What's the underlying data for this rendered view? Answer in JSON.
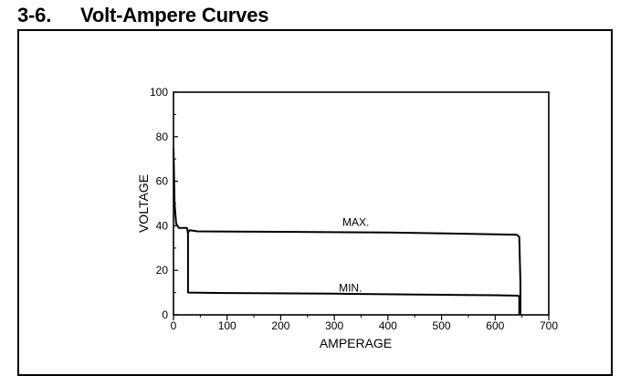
{
  "section": {
    "number": "3-6.",
    "title": "Volt-Ampere Curves"
  },
  "chart_data": {
    "type": "line",
    "title": "",
    "xlabel": "AMPERAGE",
    "ylabel": "VOLTAGE",
    "xlim": [
      0,
      700
    ],
    "ylim": [
      0,
      100
    ],
    "xticks": [
      0,
      100,
      200,
      300,
      400,
      500,
      600,
      700
    ],
    "yticks": [
      0,
      20,
      40,
      60,
      80,
      100
    ],
    "grid": false,
    "legend": "none",
    "line_color": "#000000",
    "series": [
      {
        "name": "MAX.",
        "x": [
          0,
          2,
          5,
          10,
          25,
          27,
          30,
          45,
          200,
          400,
          600,
          640,
          645,
          647,
          647
        ],
        "y": [
          75,
          50,
          41,
          39,
          39,
          37,
          38,
          37.5,
          37.3,
          37,
          36.2,
          36,
          35,
          15,
          0
        ]
      },
      {
        "name": "MIN.",
        "x": [
          25,
          27,
          27,
          30,
          100,
          300,
          500,
          600,
          643,
          645,
          645
        ],
        "y": [
          37,
          37,
          10,
          10,
          9.8,
          9.5,
          9,
          8.8,
          8.6,
          8,
          0
        ]
      }
    ]
  }
}
